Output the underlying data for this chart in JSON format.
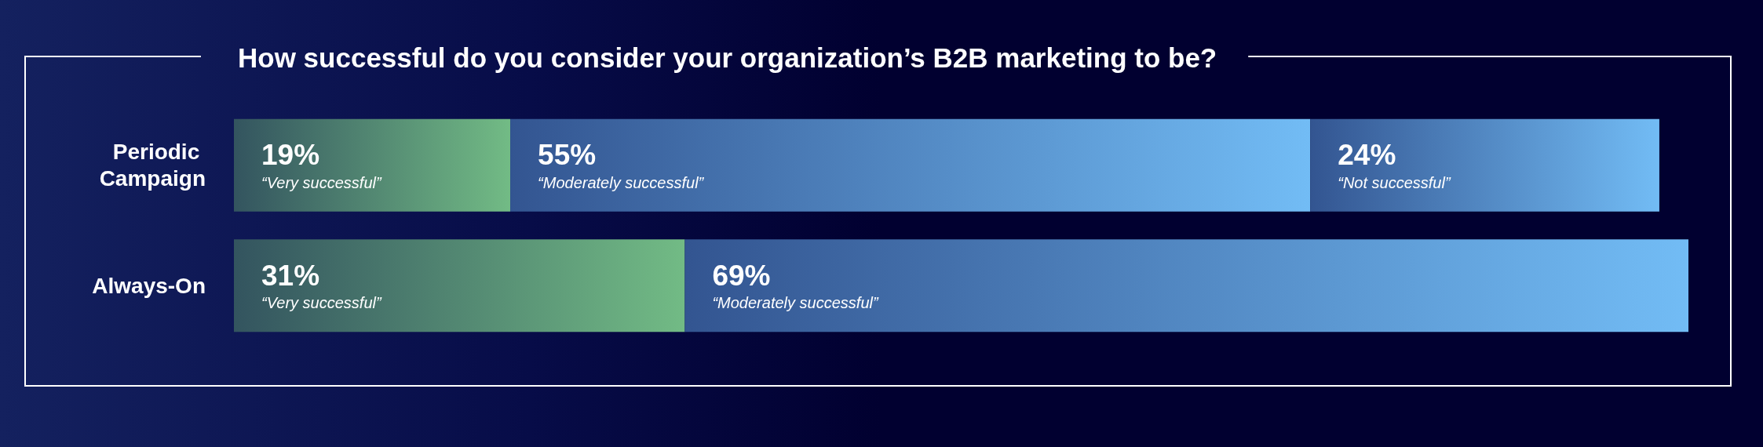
{
  "chart_data": {
    "type": "bar",
    "orientation": "horizontal",
    "stacked": true,
    "title": "How successful do you consider your organization’s B2B marketing to be?",
    "categories": [
      "Periodic Campaign",
      "Always-On"
    ],
    "series": [
      {
        "name": "“Very successful”",
        "color": "#72bb85",
        "values": [
          19,
          31
        ],
        "value_labels": [
          "19%",
          "31%"
        ]
      },
      {
        "name": "“Moderately successful”",
        "color": "#72bcf5",
        "values": [
          55,
          69
        ],
        "value_labels": [
          "55%",
          "69%"
        ]
      },
      {
        "name": "“Not successful”",
        "color": "#72bcf5",
        "values": [
          24,
          null
        ],
        "value_labels": [
          "24%",
          null
        ]
      }
    ],
    "legend": false,
    "tick_labels": "y"
  }
}
